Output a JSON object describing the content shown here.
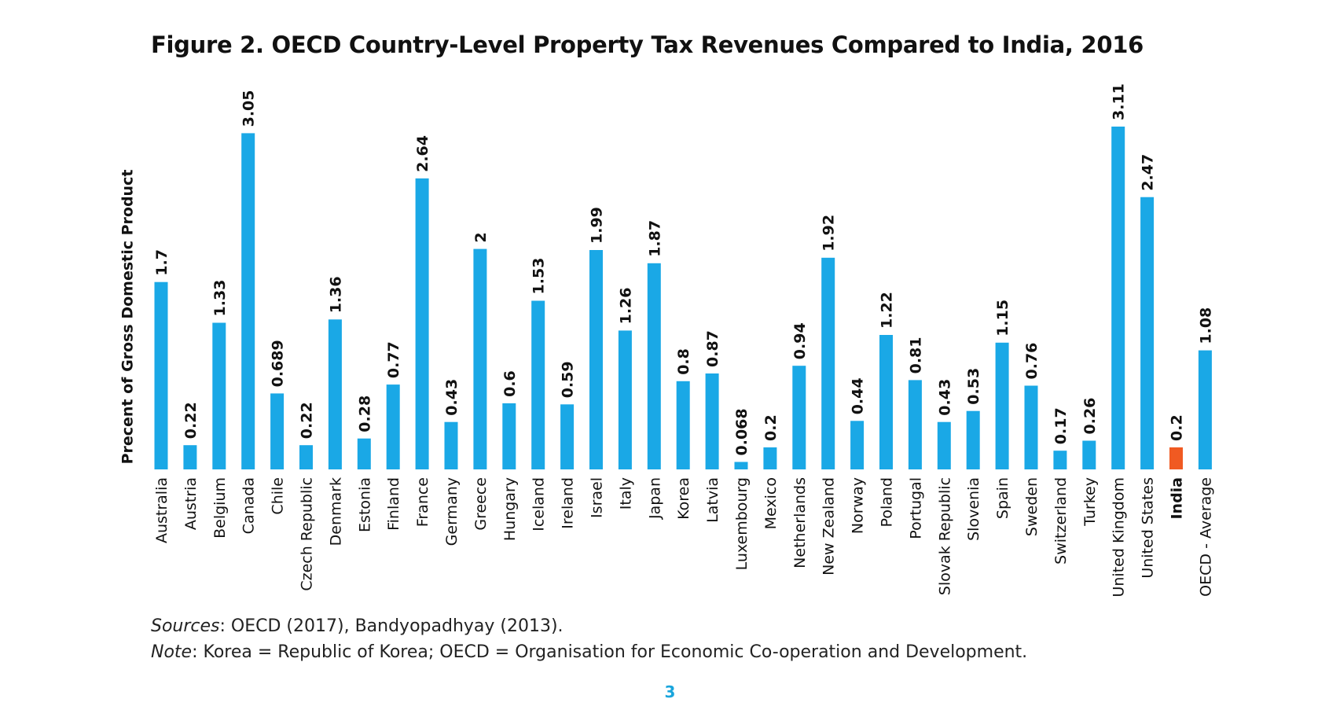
{
  "title": "Figure 2. OECD Country-Level Property Tax Revenues Compared to India, 2016",
  "notes": {
    "sources_label": "Sources",
    "sources_text": ": OECD (2017), Bandyopadhyay (2013).",
    "note_label": "Note",
    "note_text": ": Korea = Republic of Korea; OECD = Organisation for Economic Co-operation and Development."
  },
  "page_number": "3",
  "colors": {
    "bar": "#1aa8e6",
    "highlight": "#f05a22"
  },
  "chart_data": {
    "type": "bar",
    "title": "Figure 2. OECD Country-Level Property Tax Revenues Compared to India, 2016",
    "xlabel": "",
    "ylabel": "Precent of Gross Domestic Product",
    "ylim": [
      0,
      3.11
    ],
    "grid": false,
    "legend": "none",
    "categories": [
      "Australia",
      "Austria",
      "Belgium",
      "Canada",
      "Chile",
      "Czech Republic",
      "Denmark",
      "Estonia",
      "Finland",
      "France",
      "Germany",
      "Greece",
      "Hungary",
      "Iceland",
      "Ireland",
      "Israel",
      "Italy",
      "Japan",
      "Korea",
      "Latvia",
      "Luxembourg",
      "Mexico",
      "Netherlands",
      "New Zealand",
      "Norway",
      "Poland",
      "Portugal",
      "Slovak Republic",
      "Slovenia",
      "Spain",
      "Sweden",
      "Switzerland",
      "Turkey",
      "United Kingdom",
      "United States",
      "India",
      "OECD - Average"
    ],
    "values": [
      1.7,
      0.22,
      1.33,
      3.05,
      0.689,
      0.22,
      1.36,
      0.28,
      0.77,
      2.64,
      0.43,
      2,
      0.6,
      1.53,
      0.59,
      1.99,
      1.26,
      1.87,
      0.8,
      0.87,
      0.068,
      0.2,
      0.94,
      1.92,
      0.44,
      1.22,
      0.81,
      0.43,
      0.53,
      1.15,
      0.76,
      0.17,
      0.26,
      3.11,
      2.47,
      0.2,
      1.08
    ],
    "value_labels": [
      "1.7",
      "0.22",
      "1.33",
      "3.05",
      "0.689",
      "0.22",
      "1.36",
      "0.28",
      "0.77",
      "2.64",
      "0.43",
      "2",
      "0.6",
      "1.53",
      "0.59",
      "1.99",
      "1.26",
      "1.87",
      "0.8",
      "0.87",
      "0.068",
      "0.2",
      "0.94",
      "1.92",
      "0.44",
      "1.22",
      "0.81",
      "0.43",
      "0.53",
      "1.15",
      "0.76",
      "0.17",
      "0.26",
      "3.11",
      "2.47",
      "0.2",
      "1.08"
    ],
    "highlight": [
      "India"
    ]
  }
}
